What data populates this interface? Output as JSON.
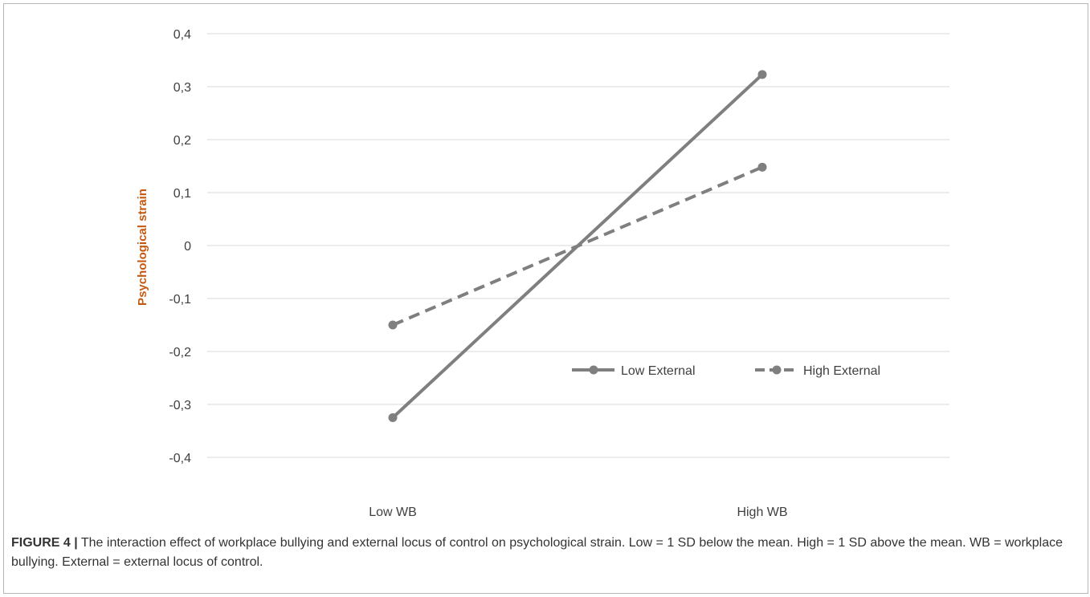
{
  "chart_data": {
    "type": "line",
    "ylabel": "Psychological  strain",
    "categories": [
      "Low WB",
      "High WB"
    ],
    "ylim": [
      -0.4,
      0.4
    ],
    "yticks": [
      0.4,
      0.3,
      0.2,
      0.1,
      0,
      -0.1,
      -0.2,
      -0.3,
      -0.4
    ],
    "ytick_labels": [
      "0,4",
      "0,3",
      "0,2",
      "0,1",
      "0",
      "-0,1",
      "-0,2",
      "-0,3",
      "-0,4"
    ],
    "grid": true,
    "legend_position": "center-right, inside plot",
    "series": [
      {
        "name": "Low External",
        "values": [
          -0.325,
          0.323
        ],
        "style": "solid",
        "color": "#7f7f7f"
      },
      {
        "name": "High External",
        "values": [
          -0.15,
          0.148
        ],
        "style": "dashed",
        "color": "#7f7f7f"
      }
    ],
    "colors": {
      "ylabel": "#c45911",
      "grid": "#d9d9d9",
      "text": "#404040"
    }
  },
  "caption": {
    "label": "FIGURE 4 |",
    "text": " The interaction effect of workplace bullying and external locus of control on psychological strain. Low = 1 SD below the mean. High = 1 SD above the mean. WB = workplace bullying. External = external locus of control."
  }
}
